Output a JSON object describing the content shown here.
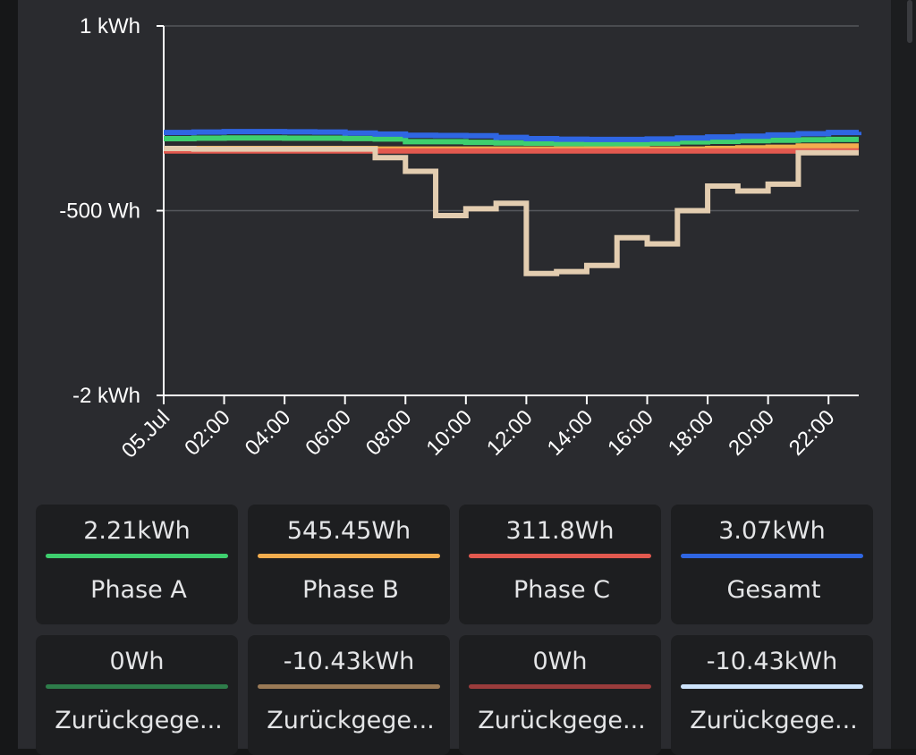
{
  "chart_data": {
    "type": "line",
    "step": true,
    "x_unit": "hour",
    "x": [
      0,
      1,
      2,
      3,
      4,
      5,
      6,
      7,
      8,
      9,
      10,
      11,
      12,
      13,
      14,
      15,
      16,
      17,
      18,
      19,
      20,
      21,
      22,
      23
    ],
    "xlim": [
      0,
      23
    ],
    "ylim": [
      -2000,
      1000
    ],
    "y_ticks": [
      {
        "value": 1000,
        "label": "1 kWh"
      },
      {
        "value": -500,
        "label": "-500 Wh"
      },
      {
        "value": -2000,
        "label": "-2 kWh"
      }
    ],
    "x_ticks": [
      {
        "value": 0,
        "label": "05.Jul"
      },
      {
        "value": 2,
        "label": "02:00"
      },
      {
        "value": 4,
        "label": "04:00"
      },
      {
        "value": 6,
        "label": "06:00"
      },
      {
        "value": 8,
        "label": "08:00"
      },
      {
        "value": 10,
        "label": "10:00"
      },
      {
        "value": 12,
        "label": "12:00"
      },
      {
        "value": 14,
        "label": "14:00"
      },
      {
        "value": 16,
        "label": "16:00"
      },
      {
        "value": 18,
        "label": "18:00"
      },
      {
        "value": 20,
        "label": "20:00"
      },
      {
        "value": 22,
        "label": "22:00"
      }
    ],
    "grid": true,
    "series": [
      {
        "color": "#3ecf6e",
        "values": [
          85,
          88,
          90,
          90,
          88,
          88,
          86,
          82,
          60,
          60,
          55,
          50,
          48,
          45,
          43,
          42,
          48,
          58,
          63,
          68,
          72,
          76,
          78,
          78
        ]
      },
      {
        "color": "#f2ad4e",
        "values": [
          0,
          5,
          5,
          5,
          5,
          5,
          5,
          0,
          0,
          0,
          0,
          0,
          0,
          0,
          0,
          0,
          0,
          0,
          5,
          10,
          15,
          25,
          25,
          25
        ]
      },
      {
        "color": "#e2594f",
        "values": [
          -15,
          -15,
          -15,
          -15,
          -15,
          -15,
          -15,
          -15,
          -15,
          -15,
          -15,
          -15,
          -15,
          -15,
          -15,
          -15,
          -15,
          -15,
          -15,
          -15,
          -15,
          -15,
          -15,
          -15
        ]
      },
      {
        "color": "#2f66e3",
        "values": [
          135,
          138,
          142,
          142,
          140,
          138,
          130,
          122,
          112,
          110,
          108,
          95,
          85,
          80,
          78,
          78,
          82,
          90,
          98,
          105,
          115,
          125,
          135,
          140
        ]
      },
      {
        "color": "#e3cdb0",
        "values": [
          5,
          0,
          0,
          0,
          0,
          0,
          0,
          -70,
          -180,
          -540,
          -485,
          -440,
          -1010,
          -995,
          -945,
          -720,
          -770,
          -500,
          -300,
          -340,
          -285,
          -30,
          -30,
          -30
        ]
      }
    ]
  },
  "cards": [
    {
      "value": "2.21kWh",
      "label": "Phase A",
      "color": "#3ecf6e"
    },
    {
      "value": "545.45Wh",
      "label": "Phase B",
      "color": "#f2ad4e"
    },
    {
      "value": "311.8Wh",
      "label": "Phase C",
      "color": "#e2594f"
    },
    {
      "value": "3.07kWh",
      "label": "Gesamt",
      "color": "#2f66e3"
    },
    {
      "value": "0Wh",
      "label": "Zurückgege...",
      "color": "#2e7d4a"
    },
    {
      "value": "-10.43kWh",
      "label": "Zurückgege...",
      "color": "#9a7a56"
    },
    {
      "value": "0Wh",
      "label": "Zurückgege...",
      "color": "#9a3c3c"
    },
    {
      "value": "-10.43kWh",
      "label": "Zurückgege...",
      "color": "#cde3fb"
    }
  ]
}
